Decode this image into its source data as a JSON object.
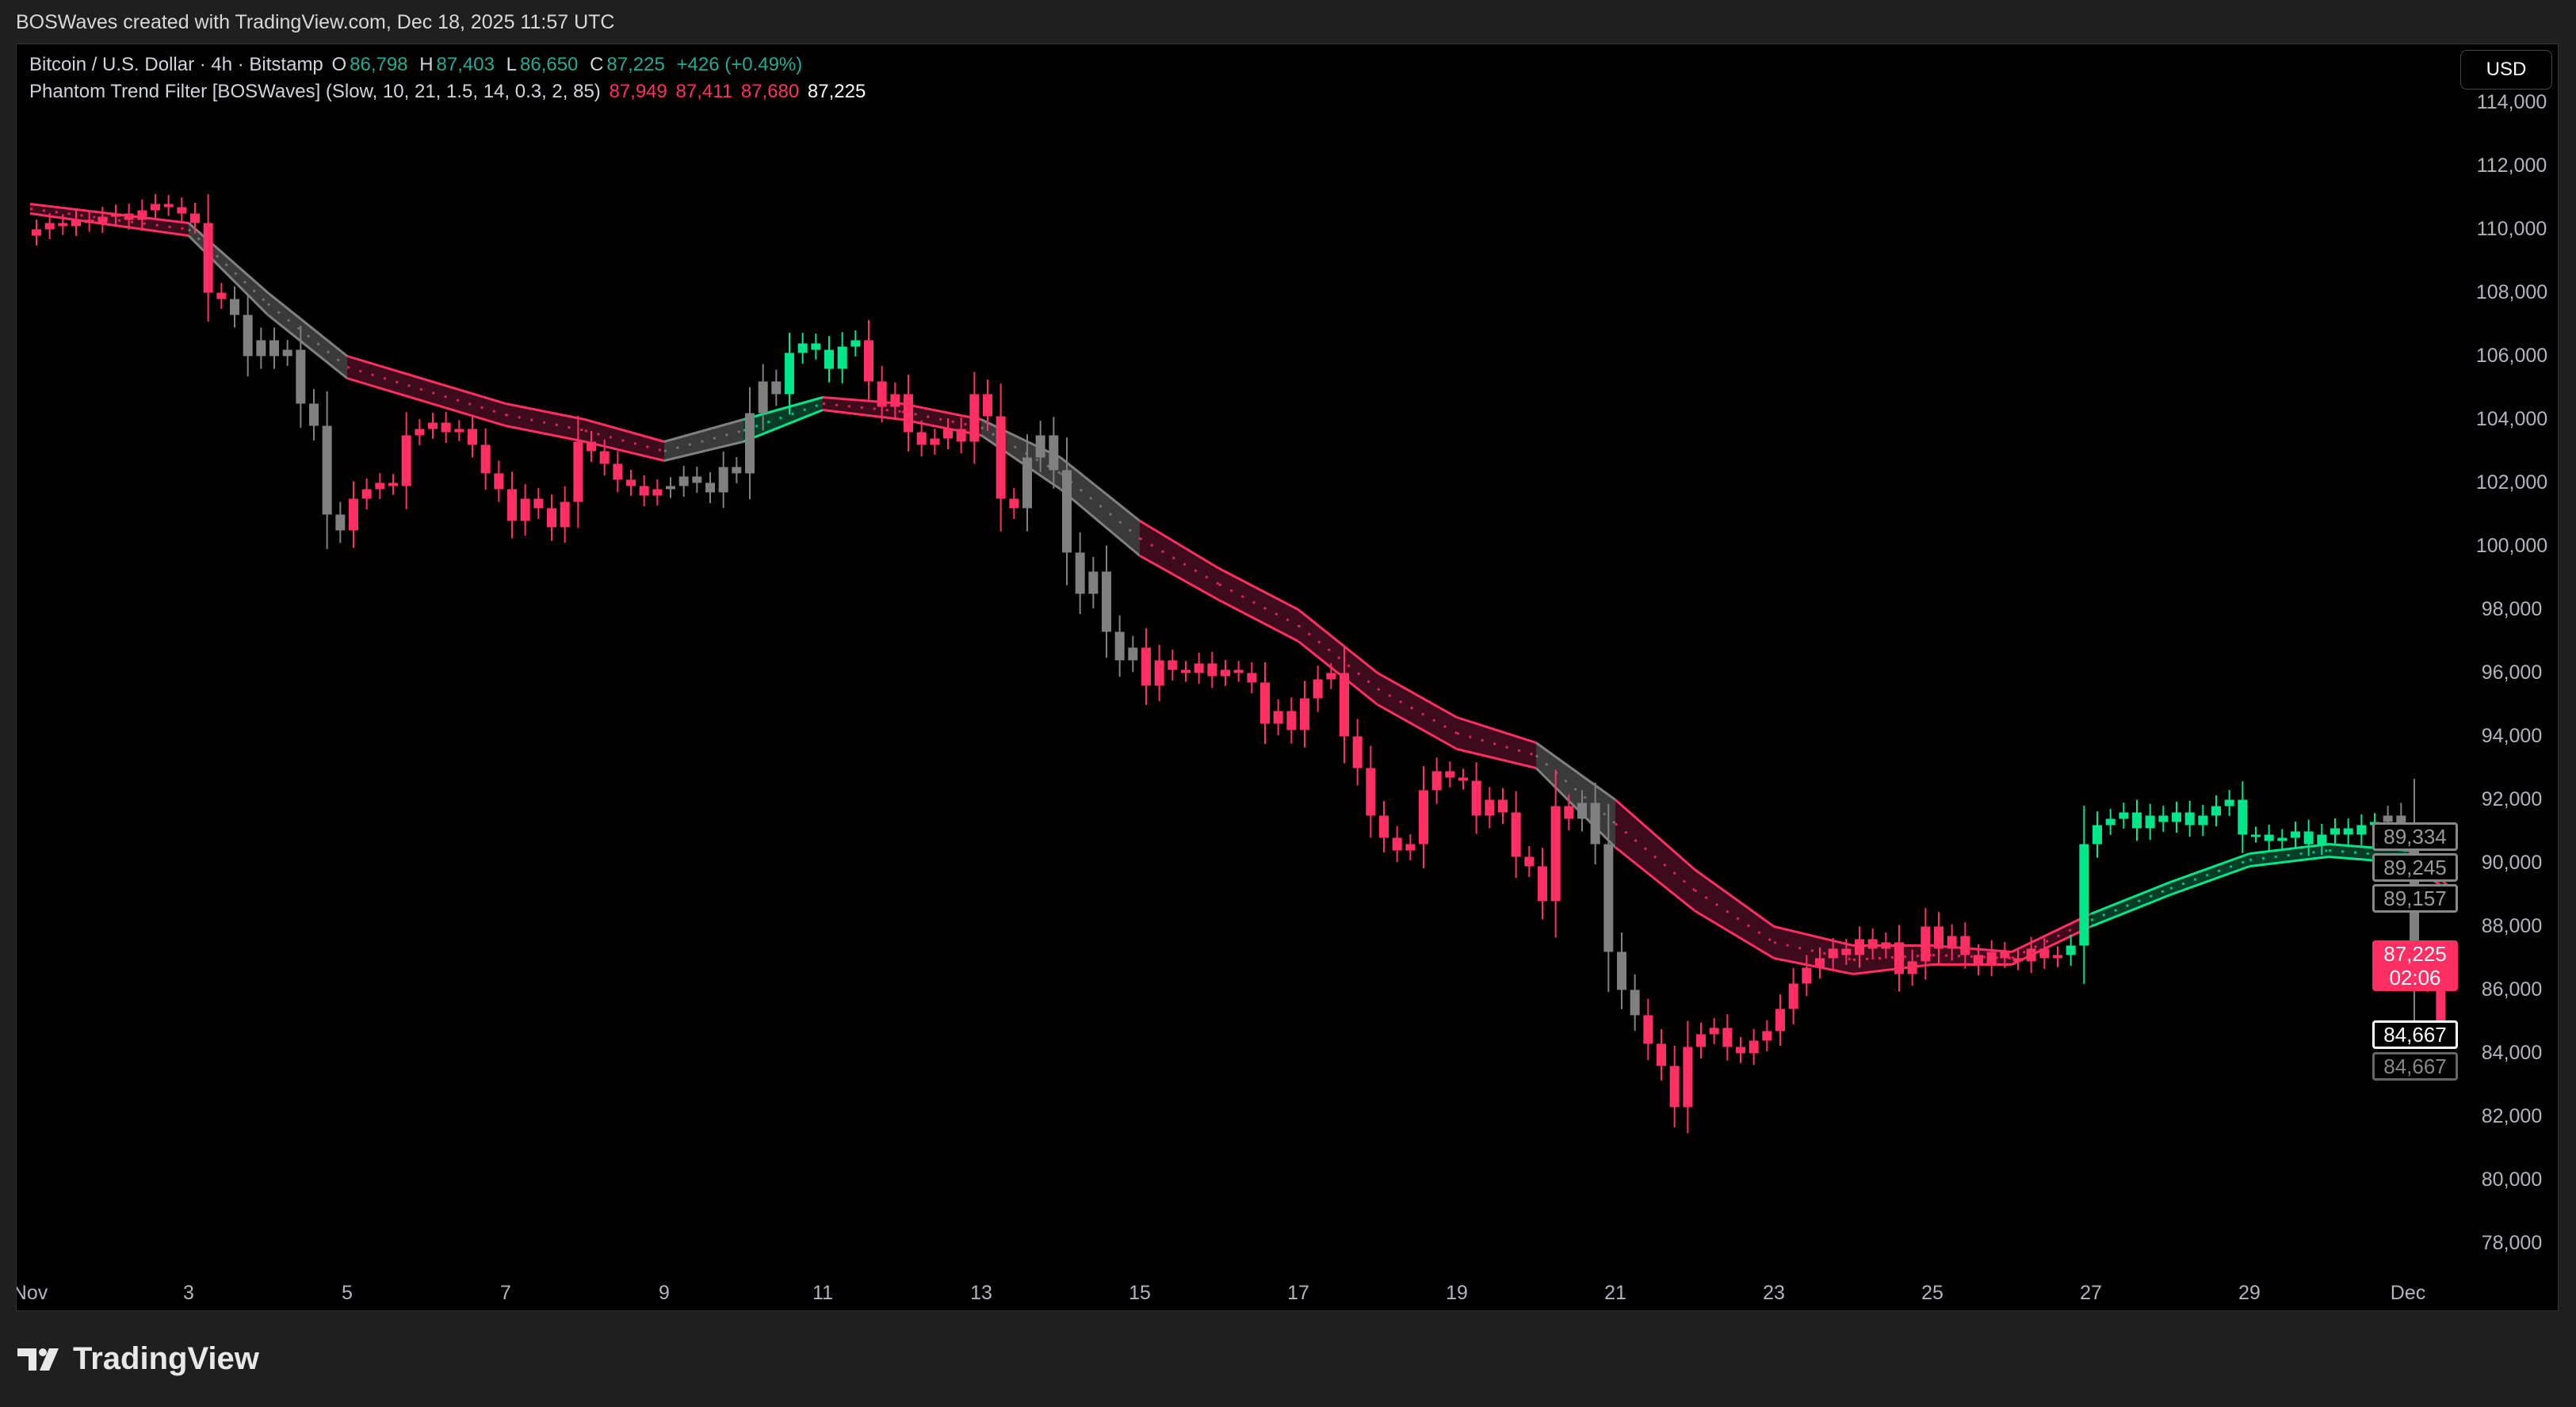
{
  "credit": "BOSWaves created with TradingView.com, Dec 18, 2025 11:57 UTC",
  "legend": {
    "symbol": "Bitcoin / U.S. Dollar · 4h · Bitstamp",
    "o_label": "O",
    "o": "86,798",
    "h_label": "H",
    "h": "87,403",
    "l_label": "L",
    "l": "86,650",
    "c_label": "C",
    "c": "87,225",
    "change": "+426 (+0.49%)",
    "indicator": "Phantom Trend Filter [BOSWaves] (Slow, 10, 21, 1.5, 14, 0.3, 2, 85)",
    "ind_values": [
      "87,949",
      "87,411",
      "87,680",
      "87,225"
    ]
  },
  "currency_button": "USD",
  "badges": [
    {
      "text": "89,334",
      "price": 89334,
      "style": "gray"
    },
    {
      "text": "89,245",
      "price": 89245,
      "style": "gray"
    },
    {
      "text": "89,157",
      "price": 89157,
      "style": "gray"
    },
    {
      "text": "87,225",
      "sub": "02:06",
      "price": 87225,
      "style": "pink"
    },
    {
      "text": "84,667",
      "price": 84667,
      "style": "white"
    },
    {
      "text": "84,667",
      "price": 84667,
      "style": "gray2"
    }
  ],
  "brand": "TradingView",
  "colors": {
    "bear": "#ff2e63",
    "bull": "#00e68a",
    "neutral": "#808080",
    "bear_fill": "#3d0b1c",
    "bull_fill": "#063d28",
    "neutral_fill": "#3a3a3a",
    "background": "#000000"
  },
  "chart_data": {
    "type": "candlestick",
    "interval": "4h",
    "start": "2025-11-01T00:00",
    "ylim": [
      77000,
      115000
    ],
    "y_ticks": [
      "114,000",
      "112,000",
      "110,000",
      "108,000",
      "106,000",
      "104,000",
      "102,000",
      "100,000",
      "98,000",
      "96,000",
      "94,000",
      "92,000",
      "90,000",
      "88,000",
      "86,000",
      "84,000",
      "82,000",
      "80,000",
      "78,000"
    ],
    "x_ticks": [
      {
        "label": "Nov",
        "date": "2025-11-01"
      },
      {
        "label": "3",
        "date": "2025-11-03"
      },
      {
        "label": "5",
        "date": "2025-11-05"
      },
      {
        "label": "7",
        "date": "2025-11-07"
      },
      {
        "label": "9",
        "date": "2025-11-09"
      },
      {
        "label": "11",
        "date": "2025-11-11"
      },
      {
        "label": "13",
        "date": "2025-11-13"
      },
      {
        "label": "15",
        "date": "2025-11-15"
      },
      {
        "label": "17",
        "date": "2025-11-17"
      },
      {
        "label": "19",
        "date": "2025-11-19"
      },
      {
        "label": "21",
        "date": "2025-11-21"
      },
      {
        "label": "23",
        "date": "2025-11-23"
      },
      {
        "label": "25",
        "date": "2025-11-25"
      },
      {
        "label": "27",
        "date": "2025-11-27"
      },
      {
        "label": "29",
        "date": "2025-11-29"
      },
      {
        "label": "Dec",
        "date": "2025-12-01"
      }
    ],
    "closes": [
      110000,
      110200,
      110100,
      110300,
      110200,
      110400,
      110500,
      110300,
      110600,
      110800,
      110700,
      110500,
      110200,
      108000,
      107800,
      107300,
      106000,
      106500,
      106000,
      106200,
      104500,
      103800,
      101000,
      100500,
      101500,
      101800,
      102000,
      101900,
      103500,
      103700,
      103900,
      103600,
      103700,
      103200,
      102300,
      101800,
      100800,
      101500,
      101200,
      100600,
      101400,
      103300,
      103000,
      102600,
      102100,
      101900,
      101600,
      101800,
      101900,
      102200,
      102000,
      101700,
      102500,
      102300,
      104200,
      105200,
      104800,
      106100,
      106400,
      106200,
      105600,
      106300,
      106500,
      105200,
      104400,
      104800,
      103600,
      103200,
      103400,
      103700,
      103300,
      104800,
      104100,
      101500,
      101200,
      102800,
      103500,
      102400,
      99800,
      98500,
      99200,
      97300,
      96400,
      96800,
      95600,
      96400,
      96100,
      96000,
      96300,
      95900,
      96100,
      96000,
      95700,
      94400,
      94800,
      94200,
      95200,
      95800,
      96000,
      94000,
      93000,
      91500,
      90800,
      90400,
      90600,
      92300,
      92900,
      92700,
      92600,
      91500,
      92000,
      91600,
      90200,
      89900,
      88800,
      91800,
      91400,
      91900,
      90600,
      87200,
      86000,
      85200,
      84300,
      83600,
      82300,
      84200,
      84600,
      84800,
      84200,
      84000,
      84400,
      84700,
      85400,
      86200,
      86700,
      87000,
      87300,
      87100,
      87600,
      87300,
      87500,
      86500,
      86900,
      88000,
      87300,
      87700,
      87100,
      86800,
      87200,
      87000,
      86900,
      87300,
      87000,
      87100,
      87400,
      90600,
      91200,
      91400,
      91600,
      91100,
      91500,
      91300,
      91600,
      91200,
      91500,
      91800,
      92000,
      90900,
      90900,
      90700,
      90800,
      91000,
      90600,
      90900,
      91100,
      90900,
      91200,
      91300,
      91500,
      91000,
      86300,
      86700,
      85000
    ],
    "band": [
      {
        "date": "2025-11-01",
        "upper": 110800,
        "lower": 110500
      },
      {
        "date": "2025-11-03",
        "upper": 110200,
        "lower": 109800
      },
      {
        "date": "2025-11-04",
        "upper": 108000,
        "lower": 107300
      },
      {
        "date": "2025-11-05",
        "upper": 106000,
        "lower": 105300
      },
      {
        "date": "2025-11-07",
        "upper": 104500,
        "lower": 103800
      },
      {
        "date": "2025-11-08",
        "upper": 104000,
        "lower": 103300
      },
      {
        "date": "2025-11-09",
        "upper": 103300,
        "lower": 102700
      },
      {
        "date": "2025-11-10",
        "upper": 104000,
        "lower": 103300
      },
      {
        "date": "2025-11-11",
        "upper": 104700,
        "lower": 104300
      },
      {
        "date": "2025-11-12",
        "upper": 104500,
        "lower": 104000
      },
      {
        "date": "2025-11-13",
        "upper": 104000,
        "lower": 103500
      },
      {
        "date": "2025-11-14",
        "upper": 102800,
        "lower": 101800
      },
      {
        "date": "2025-11-15",
        "upper": 100800,
        "lower": 99700
      },
      {
        "date": "2025-11-16",
        "upper": 99300,
        "lower": 98300
      },
      {
        "date": "2025-11-17",
        "upper": 98000,
        "lower": 97000
      },
      {
        "date": "2025-11-18",
        "upper": 96000,
        "lower": 95000
      },
      {
        "date": "2025-11-19",
        "upper": 94600,
        "lower": 93600
      },
      {
        "date": "2025-11-20",
        "upper": 93800,
        "lower": 93000
      },
      {
        "date": "2025-11-21",
        "upper": 92000,
        "lower": 90500
      },
      {
        "date": "2025-11-22",
        "upper": 89800,
        "lower": 88500
      },
      {
        "date": "2025-11-23",
        "upper": 88000,
        "lower": 87000
      },
      {
        "date": "2025-11-24",
        "upper": 87400,
        "lower": 86500
      },
      {
        "date": "2025-11-25",
        "upper": 87400,
        "lower": 86800
      },
      {
        "date": "2025-11-26",
        "upper": 87200,
        "lower": 86800
      },
      {
        "date": "2025-11-27",
        "upper": 88400,
        "lower": 88000
      },
      {
        "date": "2025-11-28",
        "upper": 89400,
        "lower": 89000
      },
      {
        "date": "2025-11-29",
        "upper": 90300,
        "lower": 89900
      },
      {
        "date": "2025-11-30",
        "upper": 90600,
        "lower": 90200
      },
      {
        "date": "2025-12-01",
        "upper": 90400,
        "lower": 90000
      },
      {
        "date": "2025-12-01T12:00",
        "upper": 89300,
        "lower": 89150
      }
    ],
    "trend": [
      {
        "from": "2025-11-01",
        "to": "2025-11-03T12:00",
        "state": "bear"
      },
      {
        "from": "2025-11-03T12:00",
        "to": "2025-11-05",
        "state": "neutral"
      },
      {
        "from": "2025-11-05",
        "to": "2025-11-09",
        "state": "bear"
      },
      {
        "from": "2025-11-09",
        "to": "2025-11-10T12:00",
        "state": "neutral"
      },
      {
        "from": "2025-11-10T12:00",
        "to": "2025-11-11T12:00",
        "state": "bull"
      },
      {
        "from": "2025-11-11T12:00",
        "to": "2025-11-13T12:00",
        "state": "bear"
      },
      {
        "from": "2025-11-13T12:00",
        "to": "2025-11-15",
        "state": "neutral"
      },
      {
        "from": "2025-11-15",
        "to": "2025-11-20T12:00",
        "state": "bear"
      },
      {
        "from": "2025-11-20T12:00",
        "to": "2025-11-21T08:00",
        "state": "neutral"
      },
      {
        "from": "2025-11-21T08:00",
        "to": "2025-11-26T16:00",
        "state": "bear"
      },
      {
        "from": "2025-11-26T16:00",
        "to": "2025-11-30T16:00",
        "state": "bull"
      },
      {
        "from": "2025-11-30T16:00",
        "to": "2025-12-01T04:00",
        "state": "neutral"
      },
      {
        "from": "2025-12-01T04:00",
        "to": "2025-12-02",
        "state": "bear"
      }
    ]
  }
}
